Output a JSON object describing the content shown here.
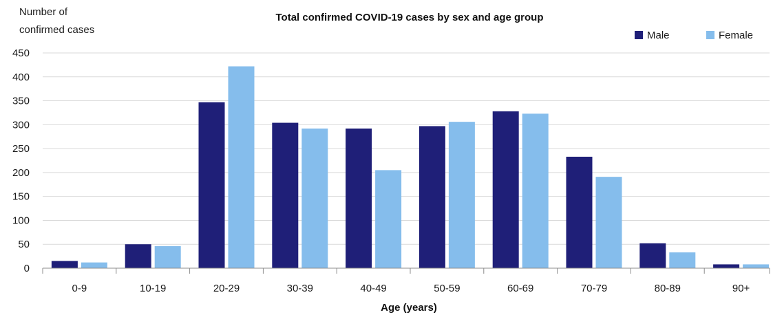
{
  "chart_data": {
    "type": "bar",
    "title": "Total confirmed COVID-19 cases by sex and age group",
    "ylabel_lines": [
      "Number of",
      "confirmed cases"
    ],
    "xlabel": "Age (years)",
    "categories": [
      "0-9",
      "10-19",
      "20-29",
      "30-39",
      "40-49",
      "50-59",
      "60-69",
      "70-79",
      "80-89",
      "90+"
    ],
    "series": [
      {
        "name": "Male",
        "color": "#1f1f78",
        "values": [
          15,
          50,
          347,
          304,
          292,
          297,
          328,
          233,
          52,
          8
        ]
      },
      {
        "name": "Female",
        "color": "#85bdec",
        "values": [
          12,
          46,
          422,
          292,
          205,
          306,
          323,
          191,
          33,
          8
        ]
      }
    ],
    "ylim": [
      0,
      450
    ],
    "yticks": [
      "0",
      "50",
      "100",
      "150",
      "200",
      "250",
      "300",
      "350",
      "400",
      "450"
    ],
    "grid": true,
    "legend_position": "top-right"
  }
}
